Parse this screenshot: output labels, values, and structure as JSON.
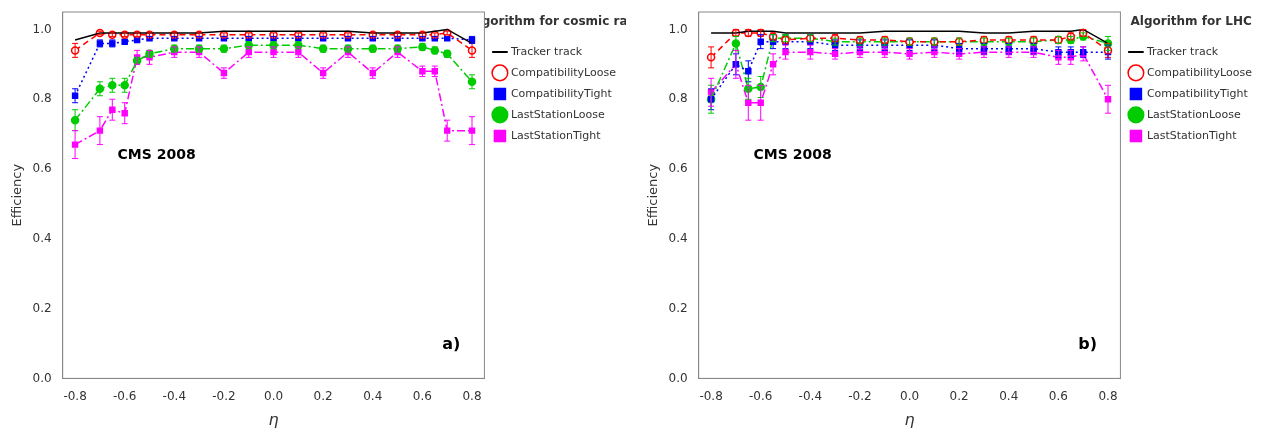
{
  "chart_data": [
    {
      "type": "line",
      "title": "Algorithm for cosmic rays",
      "annotations": [
        {
          "text": "CMS 2008"
        },
        {
          "text": "a)"
        }
      ],
      "x_label": "η",
      "y_label": "Efficiency",
      "x": [
        -0.8,
        -0.7,
        -0.65,
        -0.6,
        -0.55,
        -0.5,
        -0.4,
        -0.3,
        -0.2,
        -0.1,
        0.0,
        0.1,
        0.2,
        0.3,
        0.4,
        0.5,
        0.6,
        0.65,
        0.7,
        0.8
      ],
      "series": [
        {
          "name": "Tracker track",
          "color": "#000000",
          "marker": "none",
          "line_style": "solid",
          "values": [
            0.97,
            0.99,
            0.99,
            0.99,
            0.99,
            0.99,
            0.99,
            0.99,
            0.995,
            0.995,
            0.995,
            0.995,
            0.995,
            0.995,
            0.99,
            0.99,
            0.99,
            0.995,
            1.0,
            0.96
          ]
        },
        {
          "name": "CompatibilityLoose",
          "color": "#ff0000",
          "marker": "open_circle",
          "line_style": "dashed",
          "values": [
            0.94,
            0.99,
            0.985,
            0.985,
            0.985,
            0.985,
            0.985,
            0.985,
            0.985,
            0.985,
            0.985,
            0.985,
            0.985,
            0.985,
            0.985,
            0.985,
            0.985,
            0.985,
            0.99,
            0.94
          ],
          "errors": [
            0.02,
            0.005,
            0.005,
            0.005,
            0.005,
            0.005,
            0.005,
            0.005,
            0.005,
            0.005,
            0.005,
            0.005,
            0.005,
            0.005,
            0.005,
            0.005,
            0.005,
            0.005,
            0.005,
            0.02
          ]
        },
        {
          "name": "CompatibilityTight",
          "color": "#0000ff",
          "marker": "square",
          "line_style": "dotted",
          "values": [
            0.81,
            0.96,
            0.96,
            0.965,
            0.97,
            0.975,
            0.975,
            0.975,
            0.975,
            0.975,
            0.975,
            0.975,
            0.975,
            0.975,
            0.975,
            0.975,
            0.975,
            0.975,
            0.975,
            0.97
          ],
          "errors": [
            0.02,
            0.01,
            0.01,
            0.005,
            0.005,
            0.005,
            0.005,
            0.005,
            0.005,
            0.005,
            0.005,
            0.005,
            0.005,
            0.005,
            0.005,
            0.005,
            0.005,
            0.005,
            0.005,
            0.01
          ]
        },
        {
          "name": "LastStationLoose",
          "color": "#00cc00",
          "marker": "circle",
          "line_style": "dashdot",
          "values": [
            0.74,
            0.83,
            0.84,
            0.84,
            0.91,
            0.93,
            0.945,
            0.945,
            0.945,
            0.955,
            0.955,
            0.955,
            0.945,
            0.945,
            0.945,
            0.945,
            0.95,
            0.94,
            0.93,
            0.85
          ],
          "errors": [
            0.03,
            0.02,
            0.02,
            0.02,
            0.01,
            0.01,
            0.01,
            0.01,
            0.01,
            0.01,
            0.01,
            0.01,
            0.01,
            0.01,
            0.01,
            0.01,
            0.01,
            0.01,
            0.01,
            0.02
          ]
        },
        {
          "name": "LastStationTight",
          "color": "#ff00ff",
          "marker": "square",
          "line_style": "dashdot",
          "values": [
            0.67,
            0.71,
            0.77,
            0.76,
            0.92,
            0.92,
            0.935,
            0.935,
            0.875,
            0.935,
            0.935,
            0.935,
            0.875,
            0.935,
            0.875,
            0.935,
            0.88,
            0.88,
            0.71,
            0.71
          ],
          "errors": [
            0.04,
            0.04,
            0.03,
            0.03,
            0.02,
            0.02,
            0.015,
            0.015,
            0.015,
            0.015,
            0.015,
            0.015,
            0.015,
            0.015,
            0.015,
            0.015,
            0.015,
            0.015,
            0.03,
            0.04
          ]
        }
      ],
      "xlim": [
        -0.85,
        0.85
      ],
      "ylim": [
        0.0,
        1.05
      ],
      "xticks": [
        -0.8,
        -0.6,
        -0.4,
        -0.2,
        {
          "value": 0.0,
          "label": "0.0"
        },
        0.2,
        0.4,
        0.6,
        0.8
      ],
      "yticks": [
        {
          "value": 0.0,
          "label": "0.0"
        },
        0.2,
        0.4,
        0.6,
        0.8,
        {
          "value": 1.0,
          "label": "1.0"
        }
      ],
      "grid": false,
      "legend": "right"
    },
    {
      "type": "line",
      "title": "Algorithm for LHC",
      "annotations": [
        {
          "text": "CMS 2008"
        },
        {
          "text": "b)"
        }
      ],
      "x_label": "η",
      "y_label": "Efficiency",
      "x": [
        -0.8,
        -0.7,
        -0.65,
        -0.6,
        -0.55,
        -0.5,
        -0.4,
        -0.3,
        -0.2,
        -0.1,
        0.0,
        0.1,
        0.2,
        0.3,
        0.4,
        0.5,
        0.6,
        0.65,
        0.7,
        0.8
      ],
      "series": [
        {
          "name": "Tracker track",
          "color": "#000000",
          "marker": "none",
          "line_style": "solid",
          "values": [
            0.99,
            0.99,
            0.995,
            0.995,
            0.995,
            0.99,
            0.99,
            0.99,
            0.99,
            0.995,
            0.995,
            0.995,
            0.995,
            0.99,
            0.99,
            0.995,
            0.995,
            0.995,
            1.0,
            0.96
          ]
        },
        {
          "name": "CompatibilityLoose",
          "color": "#ff0000",
          "marker": "open_circle",
          "line_style": "dashed",
          "values": [
            0.92,
            0.99,
            0.99,
            0.99,
            0.98,
            0.97,
            0.975,
            0.975,
            0.97,
            0.97,
            0.965,
            0.965,
            0.965,
            0.97,
            0.97,
            0.97,
            0.97,
            0.98,
            0.99,
            0.94
          ],
          "errors": [
            0.03,
            0.01,
            0.01,
            0.01,
            0.01,
            0.01,
            0.01,
            0.01,
            0.01,
            0.01,
            0.01,
            0.01,
            0.01,
            0.01,
            0.01,
            0.01,
            0.01,
            0.01,
            0.01,
            0.02
          ]
        },
        {
          "name": "CompatibilityTight",
          "color": "#0000ff",
          "marker": "square",
          "line_style": "dotted",
          "values": [
            0.8,
            0.9,
            0.88,
            0.965,
            0.965,
            0.965,
            0.965,
            0.955,
            0.955,
            0.955,
            0.955,
            0.955,
            0.945,
            0.945,
            0.945,
            0.945,
            0.935,
            0.935,
            0.935,
            0.935
          ],
          "errors": [
            0.03,
            0.03,
            0.03,
            0.02,
            0.02,
            0.02,
            0.02,
            0.015,
            0.015,
            0.015,
            0.015,
            0.015,
            0.015,
            0.015,
            0.015,
            0.015,
            0.015,
            0.015,
            0.015,
            0.02
          ]
        },
        {
          "name": "LastStationLoose",
          "color": "#00cc00",
          "marker": "circle",
          "line_style": "dashdot",
          "values": [
            0.8,
            0.96,
            0.83,
            0.835,
            0.975,
            0.975,
            0.975,
            0.965,
            0.965,
            0.965,
            0.965,
            0.965,
            0.965,
            0.965,
            0.965,
            0.965,
            0.97,
            0.97,
            0.98,
            0.96
          ],
          "errors": [
            0.04,
            0.02,
            0.03,
            0.03,
            0.01,
            0.01,
            0.01,
            0.01,
            0.01,
            0.01,
            0.01,
            0.01,
            0.01,
            0.01,
            0.01,
            0.01,
            0.01,
            0.01,
            0.01,
            0.02
          ]
        },
        {
          "name": "LastStationTight",
          "color": "#ff00ff",
          "marker": "square",
          "line_style": "dashdot",
          "values": [
            0.82,
            0.9,
            0.79,
            0.79,
            0.9,
            0.935,
            0.935,
            0.93,
            0.935,
            0.935,
            0.93,
            0.935,
            0.93,
            0.935,
            0.935,
            0.935,
            0.92,
            0.92,
            0.93,
            0.8
          ],
          "errors": [
            0.04,
            0.04,
            0.05,
            0.05,
            0.03,
            0.02,
            0.02,
            0.015,
            0.015,
            0.015,
            0.015,
            0.015,
            0.015,
            0.015,
            0.015,
            0.015,
            0.02,
            0.02,
            0.02,
            0.04
          ]
        }
      ],
      "xlim": [
        -0.85,
        0.85
      ],
      "ylim": [
        0.0,
        1.05
      ],
      "xticks": [
        -0.8,
        -0.6,
        -0.4,
        -0.2,
        {
          "value": 0.0,
          "label": "0.0"
        },
        0.2,
        0.4,
        0.6,
        0.8
      ],
      "yticks": [
        {
          "value": 0.0,
          "label": "0.0"
        },
        0.2,
        0.4,
        0.6,
        0.8,
        {
          "value": 1.0,
          "label": "1.0"
        }
      ],
      "grid": false,
      "legend": "right"
    }
  ]
}
